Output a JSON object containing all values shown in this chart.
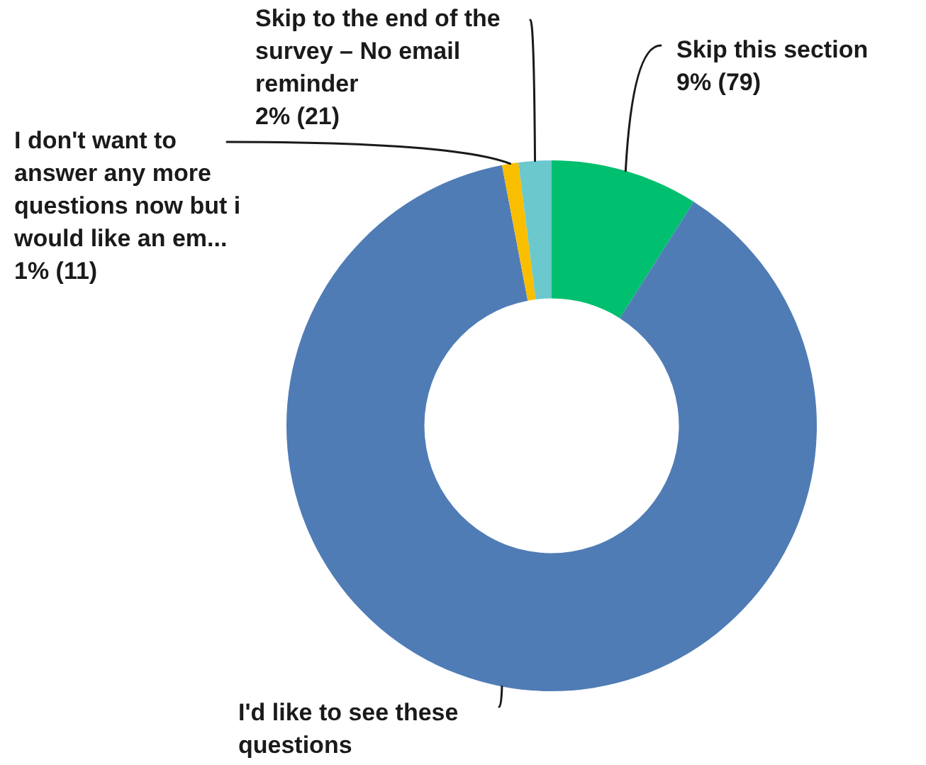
{
  "chart_data": {
    "type": "donut",
    "categories": [
      "Skip this section",
      "I'd like to see these questions",
      "I don't want to answer any more questions now but i would like an em...",
      "Skip to the end of the survey – No email reminder"
    ],
    "values": [
      9,
      88,
      1,
      2
    ],
    "colors": [
      "#00bf6f",
      "#507cb6",
      "#f9be00",
      "#6bc8cd"
    ],
    "value_labels": [
      "9% (79)",
      null,
      "1% (11)",
      "2% (21)"
    ]
  }
}
